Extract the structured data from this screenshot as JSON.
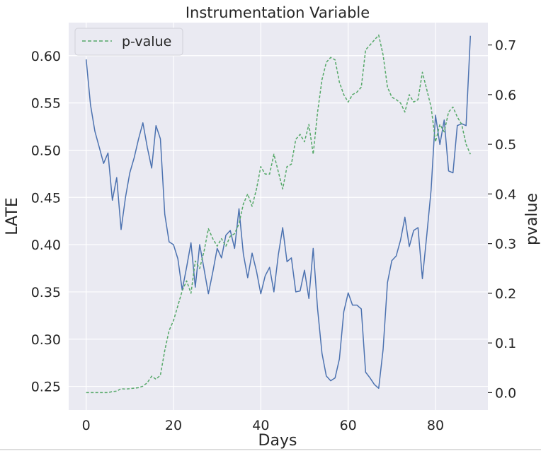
{
  "chart_data": {
    "type": "line",
    "title": "Instrumentation Variable",
    "xlabel": "Days",
    "ylabel_left": "LATE",
    "ylabel_right": "pvalue",
    "xlim": [
      -4,
      92
    ],
    "ylim_left": [
      0.225,
      0.635
    ],
    "ylim_right": [
      -0.035,
      0.745
    ],
    "x_ticks": [
      0,
      20,
      40,
      60,
      80
    ],
    "y_left_ticks": [
      0.25,
      0.3,
      0.35,
      0.4,
      0.45,
      0.5,
      0.55,
      0.6
    ],
    "y_right_ticks": [
      0.0,
      0.1,
      0.2,
      0.3,
      0.4,
      0.5,
      0.6,
      0.7
    ],
    "x_tick_labels": [
      "0",
      "20",
      "40",
      "60",
      "80"
    ],
    "y_left_tick_labels": [
      "0.25",
      "0.30",
      "0.35",
      "0.40",
      "0.45",
      "0.50",
      "0.55",
      "0.60"
    ],
    "y_right_tick_labels": [
      "0.0",
      "0.1",
      "0.2",
      "0.3",
      "0.4",
      "0.5",
      "0.6",
      "0.7"
    ],
    "grid": true,
    "legend_position": "top-left",
    "background_color": "#eaeaf2",
    "series": [
      {
        "axis": "left",
        "color": "#4c72b0",
        "style": "solid",
        "x": [
          0,
          1,
          2,
          3,
          4,
          5,
          6,
          7,
          8,
          9,
          10,
          11,
          12,
          13,
          14,
          15,
          16,
          17,
          18,
          19,
          20,
          21,
          22,
          23,
          24,
          25,
          26,
          27,
          28,
          29,
          30,
          31,
          32,
          33,
          34,
          35,
          36,
          37,
          38,
          39,
          40,
          41,
          42,
          43,
          44,
          45,
          46,
          47,
          48,
          49,
          50,
          51,
          52,
          53,
          54,
          55,
          56,
          57,
          58,
          59,
          60,
          61,
          62,
          63,
          64,
          65,
          66,
          67,
          68,
          69,
          70,
          71,
          72,
          73,
          74,
          75,
          76,
          77,
          78,
          79,
          80,
          81,
          82,
          83,
          84,
          85,
          86,
          87,
          88
        ],
        "values": [
          0.596,
          0.548,
          0.52,
          0.503,
          0.486,
          0.497,
          0.447,
          0.471,
          0.416,
          0.45,
          0.476,
          0.492,
          0.512,
          0.529,
          0.503,
          0.481,
          0.526,
          0.512,
          0.432,
          0.403,
          0.4,
          0.385,
          0.352,
          0.376,
          0.402,
          0.355,
          0.4,
          0.374,
          0.348,
          0.371,
          0.396,
          0.386,
          0.41,
          0.415,
          0.396,
          0.438,
          0.39,
          0.365,
          0.391,
          0.372,
          0.348,
          0.367,
          0.376,
          0.35,
          0.389,
          0.418,
          0.382,
          0.386,
          0.35,
          0.351,
          0.373,
          0.343,
          0.396,
          0.332,
          0.285,
          0.261,
          0.256,
          0.259,
          0.279,
          0.329,
          0.349,
          0.336,
          0.336,
          0.332,
          0.265,
          0.259,
          0.252,
          0.248,
          0.289,
          0.36,
          0.383,
          0.388,
          0.405,
          0.429,
          0.398,
          0.415,
          0.418,
          0.364,
          0.41,
          0.458,
          0.537,
          0.506,
          0.532,
          0.478,
          0.476,
          0.526,
          0.528,
          0.526,
          0.621
        ]
      },
      {
        "name": "p-value",
        "axis": "right",
        "color": "#55a868",
        "style": "dashed",
        "x": [
          0,
          1,
          2,
          3,
          4,
          5,
          6,
          7,
          8,
          9,
          10,
          11,
          12,
          13,
          14,
          15,
          16,
          17,
          18,
          19,
          20,
          21,
          22,
          23,
          24,
          25,
          26,
          27,
          28,
          29,
          30,
          31,
          32,
          33,
          34,
          35,
          36,
          37,
          38,
          39,
          40,
          41,
          42,
          43,
          44,
          45,
          46,
          47,
          48,
          49,
          50,
          51,
          52,
          53,
          54,
          55,
          56,
          57,
          58,
          59,
          60,
          61,
          62,
          63,
          64,
          65,
          66,
          67,
          68,
          69,
          70,
          71,
          72,
          73,
          74,
          75,
          76,
          77,
          78,
          79,
          80,
          81,
          82,
          83,
          84,
          85,
          86,
          87,
          88
        ],
        "values": [
          0.0,
          0.0,
          0.0,
          0.0,
          0.0,
          0.0,
          0.002,
          0.003,
          0.008,
          0.007,
          0.008,
          0.009,
          0.01,
          0.013,
          0.02,
          0.033,
          0.027,
          0.035,
          0.085,
          0.125,
          0.145,
          0.175,
          0.205,
          0.225,
          0.2,
          0.265,
          0.25,
          0.285,
          0.33,
          0.31,
          0.295,
          0.31,
          0.295,
          0.315,
          0.32,
          0.34,
          0.38,
          0.4,
          0.375,
          0.41,
          0.455,
          0.44,
          0.44,
          0.48,
          0.445,
          0.41,
          0.455,
          0.46,
          0.51,
          0.52,
          0.505,
          0.54,
          0.48,
          0.565,
          0.63,
          0.665,
          0.675,
          0.67,
          0.625,
          0.6,
          0.585,
          0.6,
          0.605,
          0.615,
          0.69,
          0.7,
          0.71,
          0.72,
          0.68,
          0.615,
          0.595,
          0.59,
          0.583,
          0.565,
          0.6,
          0.585,
          0.59,
          0.645,
          0.61,
          0.575,
          0.505,
          0.54,
          0.525,
          0.565,
          0.575,
          0.555,
          0.54,
          0.5,
          0.48
        ]
      }
    ]
  }
}
